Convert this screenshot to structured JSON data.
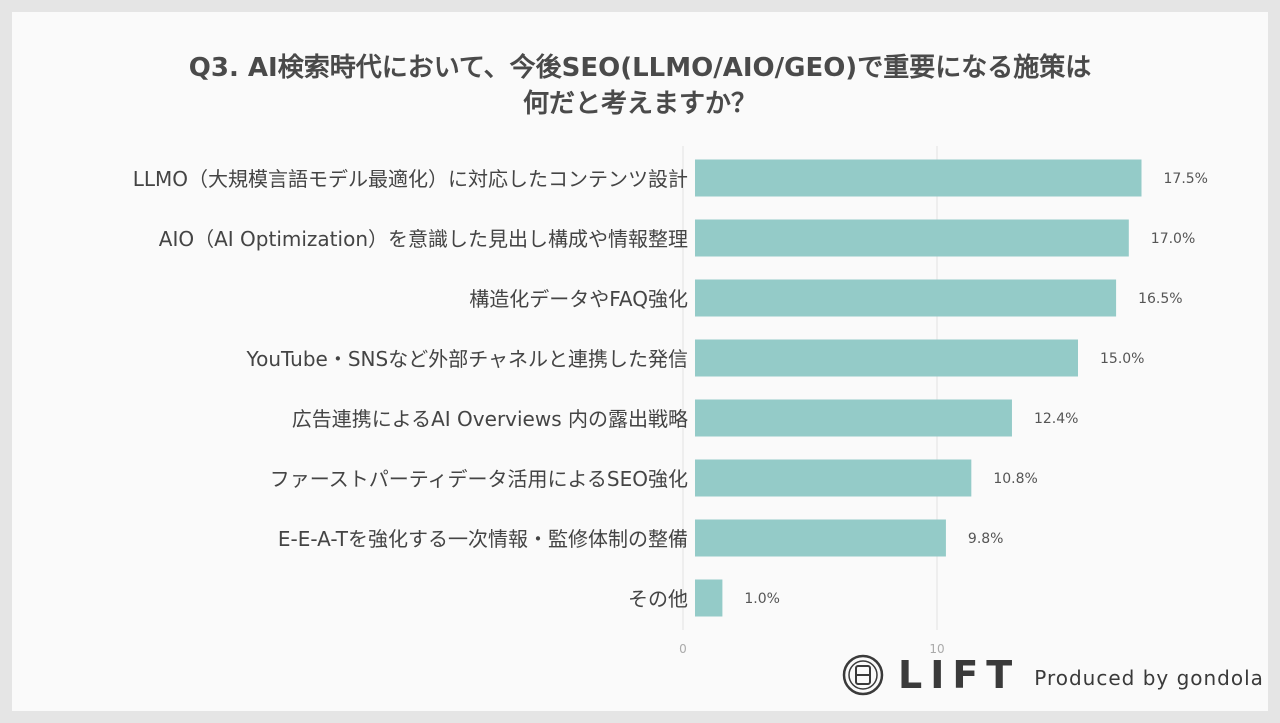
{
  "title_lines": [
    "Q3. AI検索時代において、今後SEO(LLMO/AIO/GEO)で重要になる施策は",
    "何だと考えますか？"
  ],
  "chart_data": {
    "type": "bar",
    "orientation": "horizontal",
    "categories": [
      "LLMO（大規模言語モデル最適化）に対応したコンテンツ設計",
      "AIO（AI Optimization）を意識した見出し構成や情報整理",
      "構造化データやFAQ強化",
      "YouTube・SNSなど外部チャネルと連携した発信",
      "広告連携によるAI Overviews 内の露出戦略",
      "ファーストパーティデータ活用によるSEO強化",
      "E-E-A-Tを強化する一次情報・監修体制の整備",
      "その他"
    ],
    "values": [
      17.5,
      17.0,
      16.5,
      15.0,
      12.4,
      10.8,
      9.8,
      1.0
    ],
    "value_labels": [
      "17.5%",
      "17.0%",
      "16.5%",
      "15.0%",
      "12.4%",
      "10.8%",
      "9.8%",
      "1.0%"
    ],
    "xlim": [
      0,
      20
    ],
    "xticks": [
      0,
      10
    ],
    "grid": true,
    "bar_color": "#94cbc8"
  },
  "footer": {
    "brand": "LIFT",
    "produced_by": "Produced by gondola"
  }
}
